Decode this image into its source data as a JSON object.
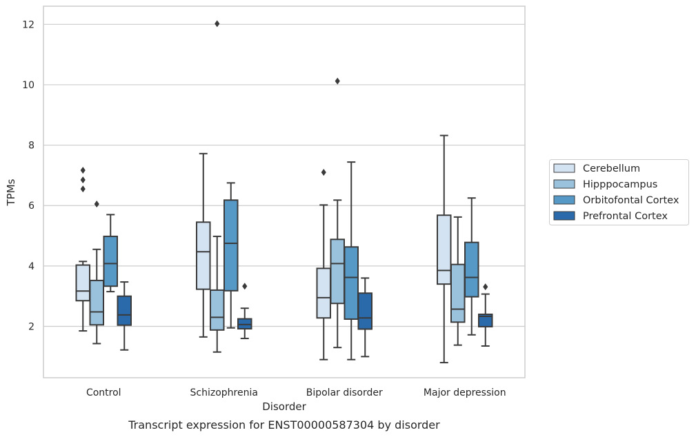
{
  "caption": "Transcript expression for ENST00000587304 by disorder",
  "chart_data": {
    "type": "boxplot",
    "title": "",
    "xlabel": "Disorder",
    "ylabel": "TPMs",
    "categories": [
      "Control",
      "Schizophrenia",
      "Bipolar disorder",
      "Major depression"
    ],
    "yticks": [
      2,
      4,
      6,
      8,
      10,
      12
    ],
    "ylim": [
      0.3,
      12.6
    ],
    "grid": "horizontal",
    "legend_position": "right",
    "series": [
      {
        "name": "Cerebellum",
        "color": "#d4e3f2",
        "boxes": [
          {
            "whisker_low": 1.85,
            "q1": 2.85,
            "median": 3.17,
            "q3": 4.03,
            "whisker_high": 4.15,
            "outliers": [
              6.55,
              6.85,
              7.17
            ]
          },
          {
            "whisker_low": 1.65,
            "q1": 3.23,
            "median": 4.47,
            "q3": 5.45,
            "whisker_high": 7.72,
            "outliers": []
          },
          {
            "whisker_low": 0.9,
            "q1": 2.28,
            "median": 2.95,
            "q3": 3.92,
            "whisker_high": 6.02,
            "outliers": [
              7.1
            ]
          },
          {
            "whisker_low": 0.8,
            "q1": 3.4,
            "median": 3.85,
            "q3": 5.68,
            "whisker_high": 8.32,
            "outliers": []
          }
        ]
      },
      {
        "name": "Hipppocampus",
        "color": "#9ac2dd",
        "boxes": [
          {
            "whisker_low": 1.43,
            "q1": 2.05,
            "median": 2.48,
            "q3": 3.52,
            "whisker_high": 4.55,
            "outliers": [
              6.05
            ]
          },
          {
            "whisker_low": 1.15,
            "q1": 1.88,
            "median": 2.3,
            "q3": 3.2,
            "whisker_high": 4.98,
            "outliers": [
              12.02
            ]
          },
          {
            "whisker_low": 1.3,
            "q1": 2.76,
            "median": 4.08,
            "q3": 4.88,
            "whisker_high": 6.18,
            "outliers": [
              10.12
            ]
          },
          {
            "whisker_low": 1.38,
            "q1": 2.14,
            "median": 2.57,
            "q3": 4.05,
            "whisker_high": 5.62,
            "outliers": []
          }
        ]
      },
      {
        "name": "Orbitofontal Cortex",
        "color": "#5699c6",
        "boxes": [
          {
            "whisker_low": 3.15,
            "q1": 3.33,
            "median": 4.08,
            "q3": 4.98,
            "whisker_high": 5.7,
            "outliers": []
          },
          {
            "whisker_low": 1.95,
            "q1": 3.18,
            "median": 4.75,
            "q3": 6.18,
            "whisker_high": 6.75,
            "outliers": []
          },
          {
            "whisker_low": 0.9,
            "q1": 2.24,
            "median": 3.62,
            "q3": 4.63,
            "whisker_high": 7.44,
            "outliers": []
          },
          {
            "whisker_low": 1.72,
            "q1": 2.98,
            "median": 3.62,
            "q3": 4.78,
            "whisker_high": 6.25,
            "outliers": []
          }
        ]
      },
      {
        "name": "Prefrontal Cortex",
        "color": "#2a69aa",
        "boxes": [
          {
            "whisker_low": 1.22,
            "q1": 2.04,
            "median": 2.38,
            "q3": 3.0,
            "whisker_high": 3.47,
            "outliers": []
          },
          {
            "whisker_low": 1.6,
            "q1": 1.92,
            "median": 2.06,
            "q3": 2.25,
            "whisker_high": 2.6,
            "outliers": [
              3.33
            ]
          },
          {
            "whisker_low": 1.0,
            "q1": 1.91,
            "median": 2.28,
            "q3": 3.1,
            "whisker_high": 3.6,
            "outliers": []
          },
          {
            "whisker_low": 1.35,
            "q1": 1.99,
            "median": 2.33,
            "q3": 2.4,
            "whisker_high": 3.07,
            "outliers": [
              3.31
            ]
          }
        ]
      }
    ]
  }
}
